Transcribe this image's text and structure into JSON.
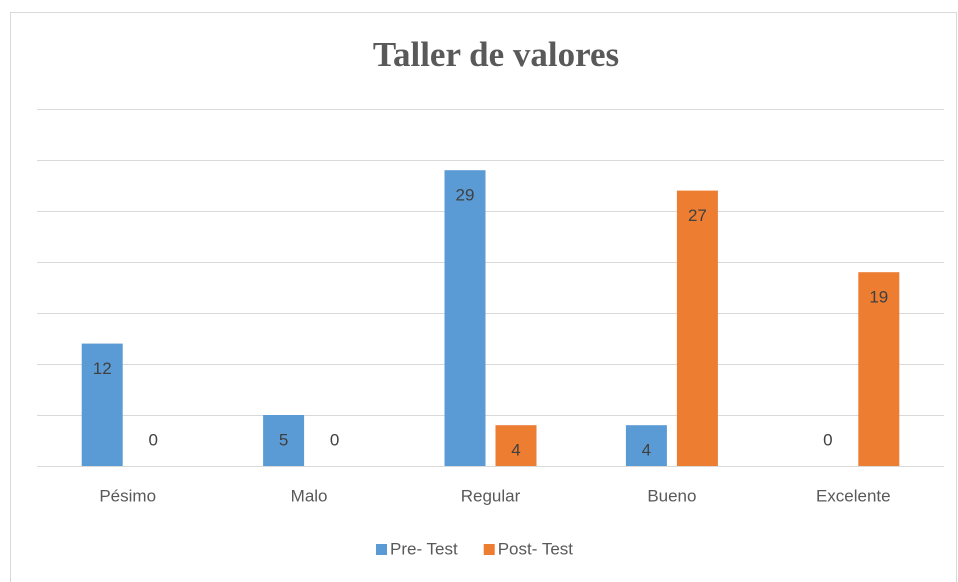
{
  "chart_data": {
    "type": "bar",
    "title": "Taller de valores",
    "categories": [
      "Pésimo",
      "Malo",
      "Regular",
      "Bueno",
      "Excelente"
    ],
    "series": [
      {
        "name": "Pre- Test",
        "color": "#5b9bd5",
        "values": [
          12,
          5,
          29,
          4,
          0
        ]
      },
      {
        "name": "Post- Test",
        "color": "#ed7d31",
        "values": [
          0,
          0,
          4,
          27,
          19
        ]
      }
    ],
    "ylim": [
      0,
      35
    ],
    "yticks": [
      0,
      5,
      10,
      15,
      20,
      25,
      30,
      35
    ],
    "grid": true,
    "legend": "bottom"
  }
}
